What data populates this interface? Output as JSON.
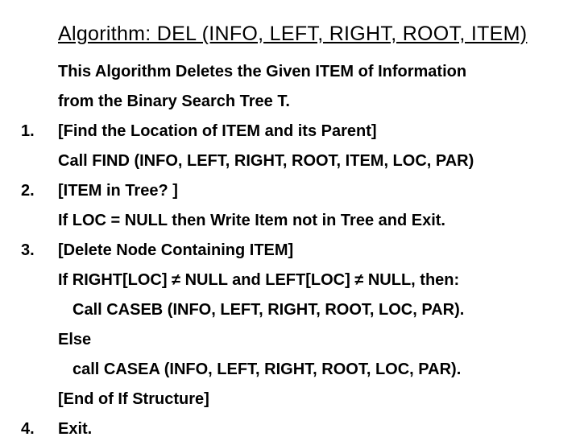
{
  "title": "Algorithm: DEL (INFO, LEFT, RIGHT, ROOT, ITEM)",
  "lines": [
    {
      "num": "",
      "text": "This Algorithm Deletes the Given ITEM of Information",
      "indent": 0
    },
    {
      "num": "",
      "text": "from the Binary Search Tree T.",
      "indent": 0
    },
    {
      "num": "1.",
      "text": "[Find the Location of ITEM and its Parent]",
      "indent": 0
    },
    {
      "num": "",
      "text": "Call FIND (INFO, LEFT, RIGHT, ROOT, ITEM, LOC, PAR)",
      "indent": 0
    },
    {
      "num": "2.",
      "text": "[ITEM in Tree? ]",
      "indent": 0
    },
    {
      "num": "",
      "text": "If LOC = NULL then Write Item not in Tree and Exit.",
      "indent": 0
    },
    {
      "num": "3.",
      "text": "[Delete Node Containing ITEM]",
      "indent": 0
    },
    {
      "num": "",
      "text": "If RIGHT[LOC] ≠ NULL and LEFT[LOC] ≠ NULL, then:",
      "indent": 0
    },
    {
      "num": "",
      "text": "Call CASEB (INFO, LEFT, RIGHT, ROOT, LOC, PAR).",
      "indent": 1
    },
    {
      "num": "",
      "text": "Else",
      "indent": 0
    },
    {
      "num": "",
      "text": "call CASEA (INFO, LEFT, RIGHT, ROOT, LOC, PAR).",
      "indent": 1
    },
    {
      "num": "",
      "text": "[End of If Structure]",
      "indent": 0
    },
    {
      "num": "4.",
      "text": "Exit.",
      "indent": 0
    }
  ]
}
